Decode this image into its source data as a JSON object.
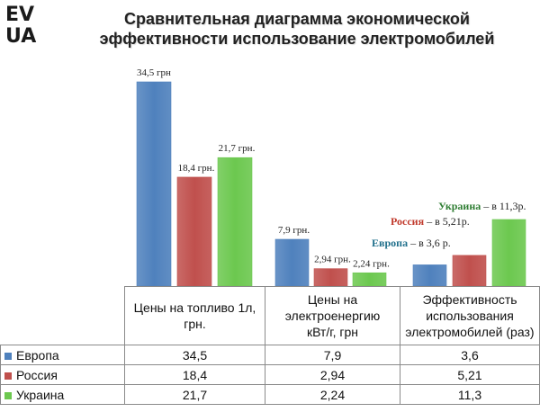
{
  "logo": {
    "line1": "EV",
    "line2": "UA"
  },
  "title": {
    "line1": "Сравнительная диаграмма экономической",
    "line2": "эффективности использование электромобилей"
  },
  "colors": {
    "europe": "#4f81bd",
    "russia": "#c0504d",
    "ukraine": "#6cc84f"
  },
  "chart_data": {
    "type": "bar",
    "title": "Сравнительная диаграмма экономической эффективности использование электромобилей",
    "categories": [
      "Цены на топливо 1л, грн.",
      "Цены на электроенергию кВт/г, грн",
      "Эффективность использования электромобилей (раз)"
    ],
    "series": [
      {
        "name": "Европа",
        "values": [
          34.5,
          7.9,
          3.6
        ]
      },
      {
        "name": "Россия",
        "values": [
          18.4,
          2.94,
          5.21
        ]
      },
      {
        "name": "Украина",
        "values": [
          21.7,
          2.24,
          11.3
        ]
      }
    ],
    "data_labels": [
      [
        "34,5 грн",
        "7,9 грн."
      ],
      [
        "18,4 грн.",
        "2,94 грн."
      ],
      [
        "21,7 грн.",
        "2,24 грн."
      ]
    ],
    "annotations": [
      {
        "country": "Украина",
        "text": " – в 11,3р."
      },
      {
        "country": "Россия",
        "text": " – в 5,21р."
      },
      {
        "country": "Европа",
        "text": " – в 3,6 р."
      }
    ],
    "legend": "table-bottom"
  },
  "table": {
    "headers": [
      [
        "Цены на топливо 1л,",
        "грн."
      ],
      [
        "Цены на",
        "электроенергию",
        "кВт/г, грн"
      ],
      [
        "Эффективность",
        "использования",
        "электромобилей (раз)"
      ]
    ],
    "rows": [
      {
        "label": "Европа",
        "cells": [
          "34,5",
          "7,9",
          "3,6"
        ]
      },
      {
        "label": "Россия",
        "cells": [
          "18,4",
          "2,94",
          "5,21"
        ]
      },
      {
        "label": "Украина",
        "cells": [
          "21,7",
          "2,24",
          "11,3"
        ]
      }
    ]
  }
}
